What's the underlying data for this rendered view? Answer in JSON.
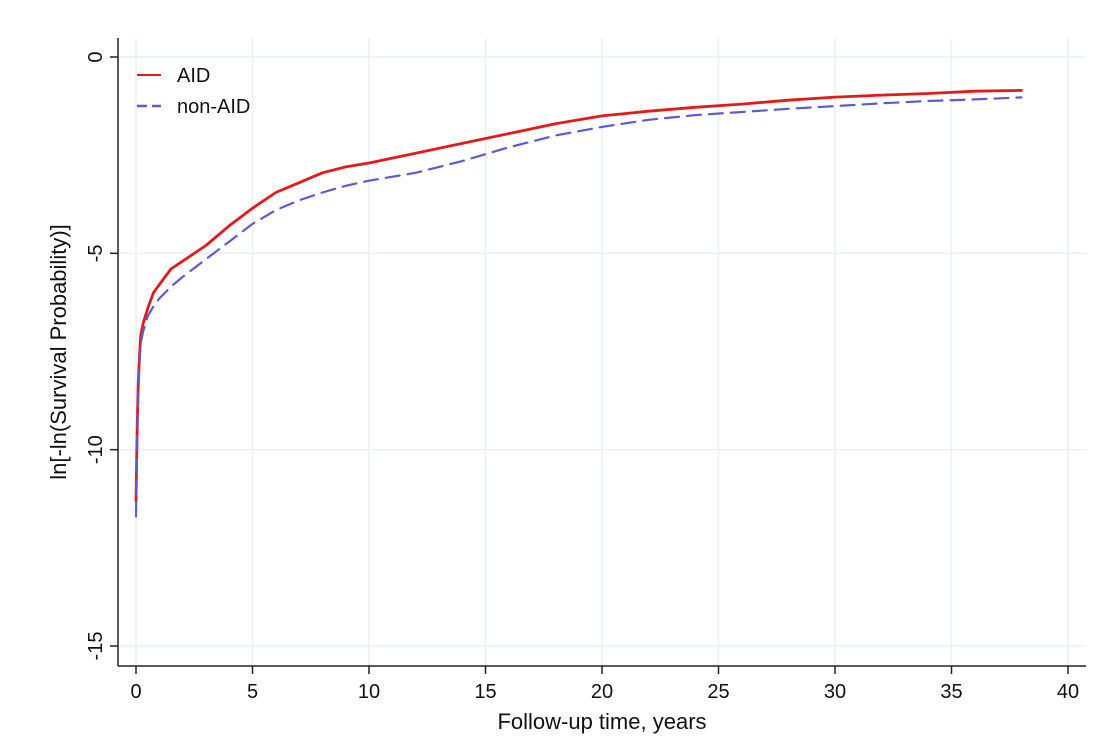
{
  "chart_data": {
    "type": "line",
    "title": "",
    "xlabel": "Follow-up time, years",
    "ylabel": "ln[-ln(Survival Probability)]",
    "xlim": [
      0,
      40
    ],
    "ylim": [
      -15,
      0
    ],
    "x_ticks": [
      "0",
      "5",
      "10",
      "15",
      "20",
      "25",
      "30",
      "35",
      "40"
    ],
    "y_ticks": [
      "0",
      "-5",
      "-10",
      "-15"
    ],
    "grid": true,
    "legend_position": "top-left",
    "series": [
      {
        "name": "AID",
        "color": "#e31a1c",
        "style": "solid",
        "x": [
          0.0,
          0.03,
          0.06,
          0.1,
          0.15,
          0.2,
          0.3,
          0.5,
          0.75,
          1.0,
          1.5,
          2.0,
          3.0,
          4.0,
          5.0,
          6.0,
          7.0,
          8.0,
          9.0,
          10.0,
          12.0,
          14.0,
          16.0,
          18.0,
          20.0,
          22.0,
          24.0,
          26.0,
          28.0,
          30.0,
          32.0,
          34.0,
          36.0,
          38.0
        ],
        "y": [
          -11.3,
          -10.2,
          -9.2,
          -8.3,
          -7.6,
          -7.1,
          -6.8,
          -6.4,
          -6.0,
          -5.8,
          -5.4,
          -5.2,
          -4.8,
          -4.3,
          -3.85,
          -3.45,
          -3.2,
          -2.95,
          -2.8,
          -2.7,
          -2.45,
          -2.2,
          -1.95,
          -1.7,
          -1.5,
          -1.38,
          -1.28,
          -1.2,
          -1.1,
          -1.02,
          -0.97,
          -0.93,
          -0.87,
          -0.85
        ]
      },
      {
        "name": "non-AID",
        "color": "#5b5bd6",
        "style": "dashed",
        "x": [
          0.0,
          0.03,
          0.06,
          0.1,
          0.15,
          0.2,
          0.3,
          0.5,
          0.75,
          1.0,
          1.5,
          2.0,
          3.0,
          4.0,
          5.0,
          6.0,
          7.0,
          8.0,
          9.0,
          10.0,
          12.0,
          14.0,
          16.0,
          18.0,
          20.0,
          22.0,
          24.0,
          26.0,
          28.0,
          30.0,
          32.0,
          34.0,
          36.0,
          38.0
        ],
        "y": [
          -11.7,
          -10.5,
          -9.5,
          -8.6,
          -7.8,
          -7.3,
          -7.0,
          -6.6,
          -6.35,
          -6.15,
          -5.85,
          -5.6,
          -5.15,
          -4.7,
          -4.25,
          -3.9,
          -3.65,
          -3.45,
          -3.28,
          -3.15,
          -2.95,
          -2.65,
          -2.3,
          -2.0,
          -1.78,
          -1.6,
          -1.48,
          -1.4,
          -1.32,
          -1.25,
          -1.18,
          -1.12,
          -1.08,
          -1.03
        ]
      }
    ]
  }
}
